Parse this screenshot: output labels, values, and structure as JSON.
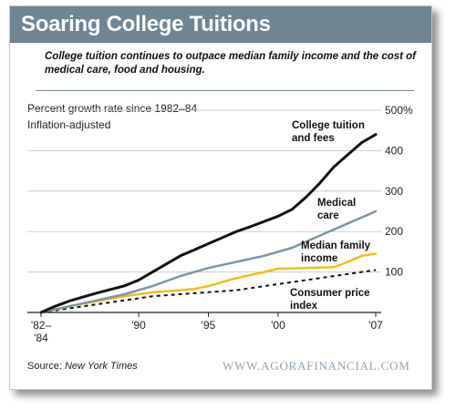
{
  "header": {
    "title": "Soaring College Tuitions",
    "subtitle": "College tuition continues to outpace median family income and the cost of medical care, food and housing."
  },
  "chart_data": {
    "type": "line",
    "notes": [
      "Percent growth rate since 1982–84",
      "Inflation-adjusted"
    ],
    "x_tick_labels": [
      {
        "year": 1983,
        "lines": [
          "'82–",
          "'84"
        ]
      },
      {
        "year": 1990,
        "lines": [
          "'90"
        ]
      },
      {
        "year": 1995,
        "lines": [
          "'95"
        ]
      },
      {
        "year": 2000,
        "lines": [
          "'00"
        ]
      },
      {
        "year": 2007,
        "lines": [
          "'07"
        ]
      }
    ],
    "y_ticks": [
      100,
      200,
      300,
      400,
      500
    ],
    "y_tick_labels": [
      "100",
      "200",
      "300",
      "400",
      "500%"
    ],
    "xlim": [
      1983,
      2007
    ],
    "ylim": [
      0,
      500
    ],
    "grid": true,
    "colors": {
      "tuition": "#111111",
      "medical": "#7d95a3",
      "income": "#f3bb1c",
      "cpi": "#111111",
      "grid": "#cccccc",
      "banner": "#6f8594"
    },
    "series": [
      {
        "key": "tuition",
        "name_lines": [
          "College tuition",
          "and fees"
        ],
        "dashed": false,
        "width": 3,
        "x": [
          1983,
          1984,
          1985,
          1986,
          1987,
          1988,
          1989,
          1990,
          1991,
          1992,
          1993,
          1994,
          1995,
          1996,
          1997,
          1998,
          1999,
          2000,
          2001,
          2002,
          2003,
          2004,
          2005,
          2006,
          2007
        ],
        "values": [
          0,
          15,
          28,
          38,
          48,
          57,
          66,
          80,
          100,
          120,
          140,
          155,
          170,
          185,
          200,
          212,
          225,
          238,
          255,
          285,
          320,
          360,
          390,
          420,
          440
        ]
      },
      {
        "key": "medical",
        "name_lines": [
          "Medical",
          "care"
        ],
        "dashed": false,
        "width": 2.5,
        "x": [
          1983,
          1985,
          1987,
          1989,
          1991,
          1993,
          1995,
          1997,
          1999,
          2001,
          2003,
          2005,
          2007
        ],
        "values": [
          0,
          15,
          30,
          45,
          65,
          90,
          110,
          125,
          140,
          160,
          190,
          220,
          250
        ]
      },
      {
        "key": "income",
        "name_lines": [
          "Median family",
          "income"
        ],
        "dashed": false,
        "width": 2.5,
        "x": [
          1983,
          1985,
          1987,
          1989,
          1991,
          1993,
          1994,
          1995,
          1997,
          1999,
          2000,
          2002,
          2004,
          2005,
          2006,
          2007
        ],
        "values": [
          0,
          15,
          28,
          40,
          50,
          55,
          58,
          65,
          85,
          100,
          108,
          110,
          112,
          125,
          140,
          145
        ]
      },
      {
        "key": "cpi",
        "name_lines": [
          "Consumer price",
          "index"
        ],
        "dashed": true,
        "width": 2,
        "x": [
          1983,
          1985,
          1987,
          1989,
          1991,
          1993,
          1995,
          1997,
          1999,
          2001,
          2003,
          2005,
          2007
        ],
        "values": [
          0,
          10,
          20,
          30,
          40,
          45,
          50,
          55,
          65,
          75,
          85,
          95,
          105
        ]
      }
    ]
  },
  "footer": {
    "source_label": "Source:",
    "source_name": "New York Times",
    "brand": "WWW.AGORAFINANCIAL.COM"
  }
}
